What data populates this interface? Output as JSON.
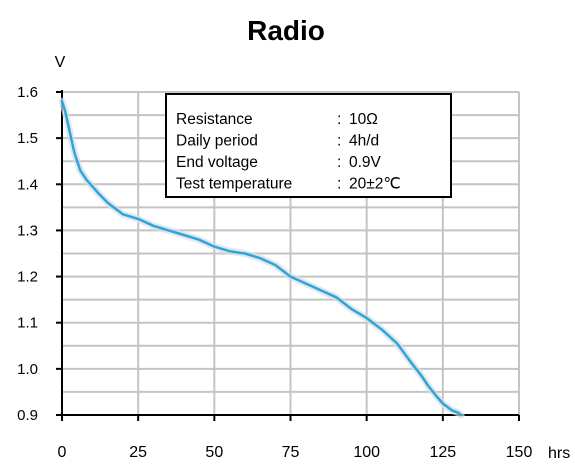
{
  "chart_data": {
    "type": "line",
    "title": "Radio",
    "ylabel": "V",
    "xlabel": "hrs",
    "xlim": [
      0,
      150
    ],
    "ylim": [
      0.9,
      1.6
    ],
    "x_ticks": [
      0,
      25,
      50,
      75,
      100,
      125,
      150
    ],
    "y_ticks": [
      0.9,
      1.0,
      1.1,
      1.2,
      1.3,
      1.4,
      1.5,
      1.6
    ],
    "x_tick_labels": [
      "0",
      "25",
      "50",
      "75",
      "100",
      "125",
      "150"
    ],
    "y_tick_labels": [
      "0.9",
      "1.0",
      "1.1",
      "1.2",
      "1.3",
      "1.4",
      "1.5",
      "1.6"
    ],
    "grid": true,
    "line_color": "#2aa6dc",
    "series": [
      {
        "x": [
          0,
          1,
          2,
          3,
          4,
          5,
          6,
          8,
          10,
          12,
          15,
          18,
          20,
          25,
          30,
          35,
          40,
          45,
          50,
          55,
          60,
          65,
          70,
          75,
          80,
          85,
          90,
          95,
          100,
          105,
          110,
          115,
          118,
          120,
          123,
          125,
          128,
          130,
          131
        ],
        "y": [
          1.58,
          1.56,
          1.53,
          1.5,
          1.47,
          1.45,
          1.43,
          1.41,
          1.395,
          1.38,
          1.36,
          1.345,
          1.335,
          1.325,
          1.31,
          1.3,
          1.29,
          1.28,
          1.265,
          1.255,
          1.25,
          1.24,
          1.225,
          1.2,
          1.185,
          1.17,
          1.155,
          1.13,
          1.11,
          1.085,
          1.055,
          1.01,
          0.985,
          0.965,
          0.94,
          0.925,
          0.91,
          0.905,
          0.9
        ]
      }
    ],
    "legend": {
      "rows": [
        {
          "label": "Resistance",
          "value": "10Ω"
        },
        {
          "label": "Daily period",
          "value": "4h/d"
        },
        {
          "label": "End voltage",
          "value": "0.9V"
        },
        {
          "label": "Test temperature",
          "value": "20±2℃"
        }
      ],
      "separator": ":",
      "placement": "top-center"
    }
  }
}
